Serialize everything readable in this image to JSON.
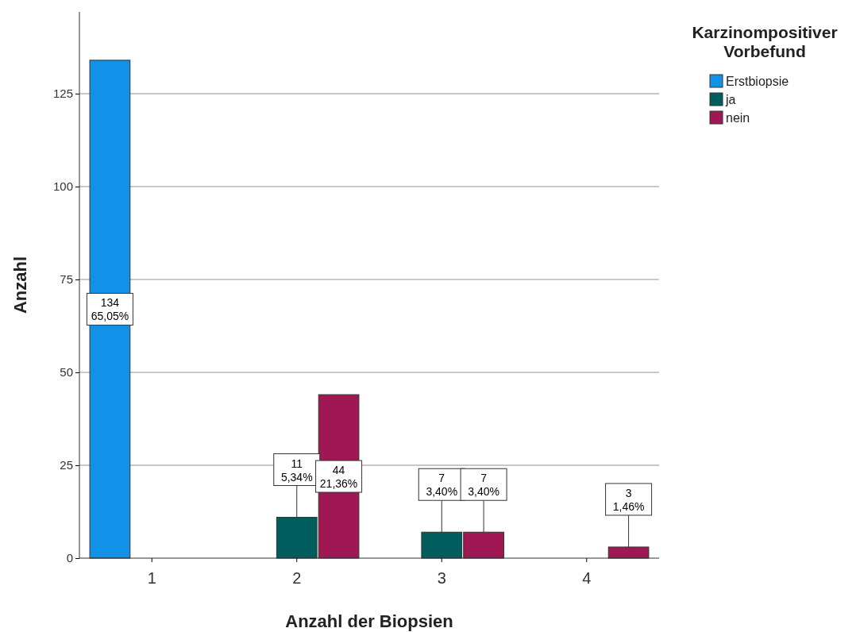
{
  "chart_data": {
    "type": "bar",
    "xlabel": "Anzahl der Biopsien",
    "ylabel": "Anzahl",
    "legend_title": "Karzinompositiver Vorbefund",
    "categories": [
      "1",
      "2",
      "3",
      "4"
    ],
    "series": [
      {
        "name": "Erstbiopsie",
        "color": "#1192e8",
        "values": [
          134,
          null,
          null,
          null
        ],
        "value_labels": [
          "134\n65,05%",
          null,
          null,
          null
        ]
      },
      {
        "name": "ja",
        "color": "#005d5d",
        "values": [
          null,
          11,
          7,
          null
        ],
        "value_labels": [
          null,
          "11\n5,34%",
          "7\n3,40%",
          null
        ]
      },
      {
        "name": "nein",
        "color": "#9f1853",
        "values": [
          null,
          44,
          7,
          3
        ],
        "value_labels": [
          null,
          "44\n21,36%",
          "7\n3,40%",
          "3\n1,46%"
        ]
      }
    ],
    "ylim": [
      0,
      147
    ],
    "yticks": [
      0,
      25,
      50,
      75,
      100,
      125
    ],
    "grid": "y",
    "legend": "top right"
  }
}
